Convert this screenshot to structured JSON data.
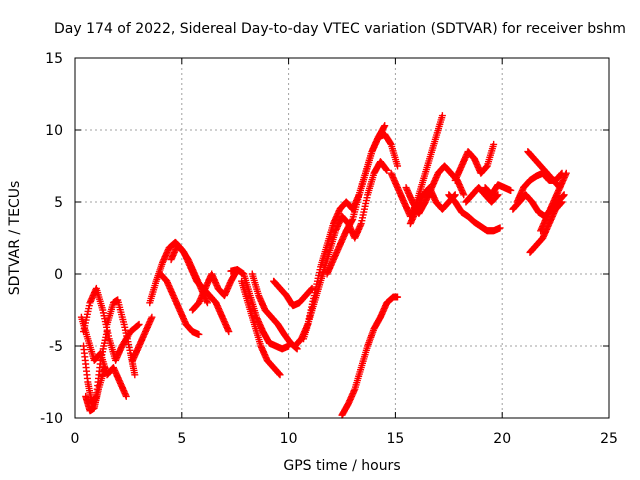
{
  "chart_data": {
    "type": "scatter",
    "title": "Day 174 of 2022, Sidereal Day-to-day VTEC variation (SDTVAR) for receiver bshm",
    "xlabel": "GPS time / hours",
    "ylabel": "SDTVAR / TECUs",
    "xlim": [
      0,
      25
    ],
    "ylim": [
      -10,
      15
    ],
    "xticks": [
      0,
      5,
      10,
      15,
      20,
      25
    ],
    "yticks": [
      -10,
      -5,
      0,
      5,
      10,
      15
    ],
    "xtick_labels": [
      "0",
      "5",
      "10",
      "15",
      "20",
      "25"
    ],
    "ytick_labels": [
      "-10",
      "-5",
      "0",
      "5",
      "10",
      "15"
    ],
    "grid": true,
    "marker": "plus",
    "series": [
      {
        "name": "SDTVAR",
        "color": "#ff0000",
        "tracks": [
          {
            "x": [
              0.3,
              0.6,
              0.9,
              1.2,
              1.5,
              1.8,
              2.1,
              2.4
            ],
            "y": [
              -3.0,
              -4.5,
              -6.0,
              -5.5,
              -7.0,
              -6.5,
              -7.5,
              -8.5
            ]
          },
          {
            "x": [
              0.4,
              0.6,
              0.8,
              1.0,
              1.2,
              1.5
            ],
            "y": [
              -5.0,
              -7.5,
              -9.0,
              -8.5,
              -6.0,
              -4.0
            ]
          },
          {
            "x": [
              0.5,
              0.7,
              0.9,
              1.1,
              1.4
            ],
            "y": [
              -8.5,
              -9.5,
              -9.3,
              -8.0,
              -6.5
            ]
          },
          {
            "x": [
              0.4,
              0.7,
              1.0,
              1.3,
              1.6,
              1.9,
              2.2,
              2.6,
              3.0
            ],
            "y": [
              -4.0,
              -2.0,
              -1.0,
              -2.5,
              -4.5,
              -6.0,
              -5.0,
              -4.0,
              -3.5
            ]
          },
          {
            "x": [
              1.5,
              1.8,
              2.0,
              2.3,
              2.6,
              2.8
            ],
            "y": [
              -3.5,
              -2.0,
              -1.8,
              -3.5,
              -5.5,
              -7.0
            ]
          },
          {
            "x": [
              2.7,
              3.0,
              3.3,
              3.6
            ],
            "y": [
              -6.0,
              -5.0,
              -4.0,
              -3.0
            ]
          },
          {
            "x": [
              3.5,
              3.8,
              4.1,
              4.4,
              4.7,
              5.0,
              5.3,
              5.6,
              5.9,
              6.2
            ],
            "y": [
              -2.0,
              -0.5,
              0.8,
              1.8,
              2.2,
              1.7,
              1.0,
              0.0,
              -1.0,
              -2.0
            ]
          },
          {
            "x": [
              4.5,
              4.8,
              5.1,
              5.4,
              5.7,
              6.0,
              6.3,
              6.6,
              6.9,
              7.2
            ],
            "y": [
              1.0,
              2.0,
              1.5,
              0.5,
              -0.5,
              -1.0,
              -1.5,
              -2.0,
              -3.0,
              -4.0
            ]
          },
          {
            "x": [
              4.0,
              4.3,
              4.6,
              4.9,
              5.2,
              5.5,
              5.8
            ],
            "y": [
              0.0,
              -0.5,
              -1.5,
              -2.5,
              -3.5,
              -4.0,
              -4.2
            ]
          },
          {
            "x": [
              5.5,
              5.8,
              6.1,
              6.4,
              6.7,
              7.0,
              7.3,
              7.6
            ],
            "y": [
              -2.5,
              -2.0,
              -1.0,
              0.0,
              -1.0,
              -1.5,
              -0.5,
              0.3
            ]
          },
          {
            "x": [
              7.3,
              7.6,
              7.9,
              8.2,
              8.5,
              8.8,
              9.1,
              9.4,
              9.7,
              10.0
            ],
            "y": [
              0.2,
              0.3,
              0.0,
              -1.5,
              -3.0,
              -4.0,
              -4.8,
              -5.0,
              -5.2,
              -5.0
            ]
          },
          {
            "x": [
              7.8,
              8.1,
              8.4,
              8.7,
              9.0,
              9.3,
              9.6
            ],
            "y": [
              -0.5,
              -2.0,
              -3.5,
              -5.0,
              -6.0,
              -6.5,
              -7.0
            ]
          },
          {
            "x": [
              8.3,
              8.6,
              8.9,
              9.2,
              9.5,
              9.8,
              10.1,
              10.4
            ],
            "y": [
              0.0,
              -1.5,
              -2.5,
              -3.0,
              -3.5,
              -4.2,
              -4.8,
              -5.2
            ]
          },
          {
            "x": [
              9.3,
              9.6,
              9.9,
              10.2,
              10.5,
              10.8,
              11.1
            ],
            "y": [
              -0.5,
              -1.0,
              -1.5,
              -2.2,
              -2.0,
              -1.5,
              -1.0
            ]
          },
          {
            "x": [
              10.3,
              10.6,
              10.9,
              11.2,
              11.5,
              11.8,
              12.1,
              12.4,
              12.7,
              13.0,
              13.3,
              13.6,
              13.9,
              14.2,
              14.5
            ],
            "y": [
              -5.0,
              -4.5,
              -3.5,
              -1.5,
              0.5,
              2.0,
              3.5,
              4.5,
              5.0,
              4.5,
              5.5,
              7.0,
              8.5,
              9.5,
              10.3
            ]
          },
          {
            "x": [
              10.7,
              11.0,
              11.3,
              11.6,
              11.9,
              12.2,
              12.5,
              12.8,
              13.1,
              13.4,
              13.7,
              14.0,
              14.3,
              14.6
            ],
            "y": [
              -4.5,
              -3.0,
              -1.5,
              0.0,
              1.5,
              3.0,
              4.0,
              3.5,
              2.5,
              3.5,
              5.5,
              7.0,
              7.8,
              7.2
            ]
          },
          {
            "x": [
              11.8,
              12.1,
              12.4,
              12.7,
              13.0,
              13.3,
              13.6,
              13.9,
              14.2,
              14.5,
              14.8,
              15.1
            ],
            "y": [
              0.0,
              1.0,
              2.0,
              3.0,
              3.8,
              5.5,
              7.0,
              8.5,
              9.5,
              9.7,
              9.0,
              7.5
            ]
          },
          {
            "x": [
              12.5,
              12.8,
              13.1,
              13.4,
              13.7,
              14.0,
              14.3,
              14.6,
              14.9,
              15.1
            ],
            "y": [
              -9.8,
              -9.0,
              -8.0,
              -6.5,
              -5.0,
              -3.8,
              -3.0,
              -2.0,
              -1.6,
              -1.6
            ]
          },
          {
            "x": [
              14.8,
              15.1,
              15.4,
              15.7,
              16.0,
              16.3,
              16.6,
              16.9,
              17.2
            ],
            "y": [
              7.0,
              6.0,
              5.0,
              4.0,
              5.0,
              6.5,
              8.0,
              9.5,
              11.0
            ]
          },
          {
            "x": [
              15.5,
              15.8,
              16.1,
              16.4,
              16.7,
              17.0,
              17.3,
              17.6,
              17.9,
              18.2
            ],
            "y": [
              6.0,
              5.0,
              4.2,
              5.0,
              6.0,
              7.0,
              7.5,
              7.0,
              6.5,
              5.5
            ]
          },
          {
            "x": [
              15.7,
              16.0,
              16.3,
              16.6,
              16.9,
              17.2,
              17.5,
              17.8
            ],
            "y": [
              3.5,
              4.5,
              5.5,
              6.0,
              5.0,
              4.5,
              5.0,
              5.5
            ]
          },
          {
            "x": [
              17.5,
              17.8,
              18.1,
              18.4,
              18.7,
              19.0,
              19.3,
              19.6,
              19.9
            ],
            "y": [
              5.5,
              5.0,
              4.3,
              4.0,
              3.6,
              3.3,
              3.0,
              3.0,
              3.2
            ]
          },
          {
            "x": [
              17.8,
              18.1,
              18.4,
              18.7,
              19.0,
              19.3,
              19.6
            ],
            "y": [
              6.5,
              7.5,
              8.5,
              8.0,
              7.0,
              7.5,
              9.0
            ]
          },
          {
            "x": [
              18.3,
              18.6,
              18.9,
              19.2,
              19.5,
              19.8
            ],
            "y": [
              5.0,
              5.5,
              6.0,
              5.5,
              5.0,
              5.5
            ]
          },
          {
            "x": [
              19.2,
              19.5,
              19.8,
              20.1,
              20.4
            ],
            "y": [
              6.0,
              5.5,
              6.2,
              6.0,
              5.8
            ]
          },
          {
            "x": [
              20.5,
              20.8,
              21.1,
              21.4,
              21.7,
              22.0,
              22.3,
              22.6,
              22.9
            ],
            "y": [
              4.5,
              5.0,
              5.5,
              5.0,
              4.3,
              4.0,
              4.5,
              5.0,
              5.5
            ]
          },
          {
            "x": [
              20.7,
              21.0,
              21.3,
              21.6,
              21.9,
              22.2,
              22.5,
              22.8
            ],
            "y": [
              5.0,
              6.0,
              6.5,
              6.8,
              7.0,
              6.5,
              6.5,
              7.0
            ]
          },
          {
            "x": [
              21.2,
              21.5,
              21.8,
              22.1,
              22.4,
              22.7
            ],
            "y": [
              8.5,
              8.0,
              7.5,
              7.0,
              6.5,
              6.0
            ]
          },
          {
            "x": [
              21.3,
              21.6,
              21.9,
              22.2,
              22.5,
              22.8
            ],
            "y": [
              1.5,
              2.0,
              2.5,
              3.5,
              4.5,
              5.0
            ]
          },
          {
            "x": [
              21.8,
              22.1,
              22.4,
              22.7,
              23.0
            ],
            "y": [
              3.0,
              4.0,
              5.0,
              6.0,
              7.0
            ]
          }
        ]
      }
    ]
  }
}
